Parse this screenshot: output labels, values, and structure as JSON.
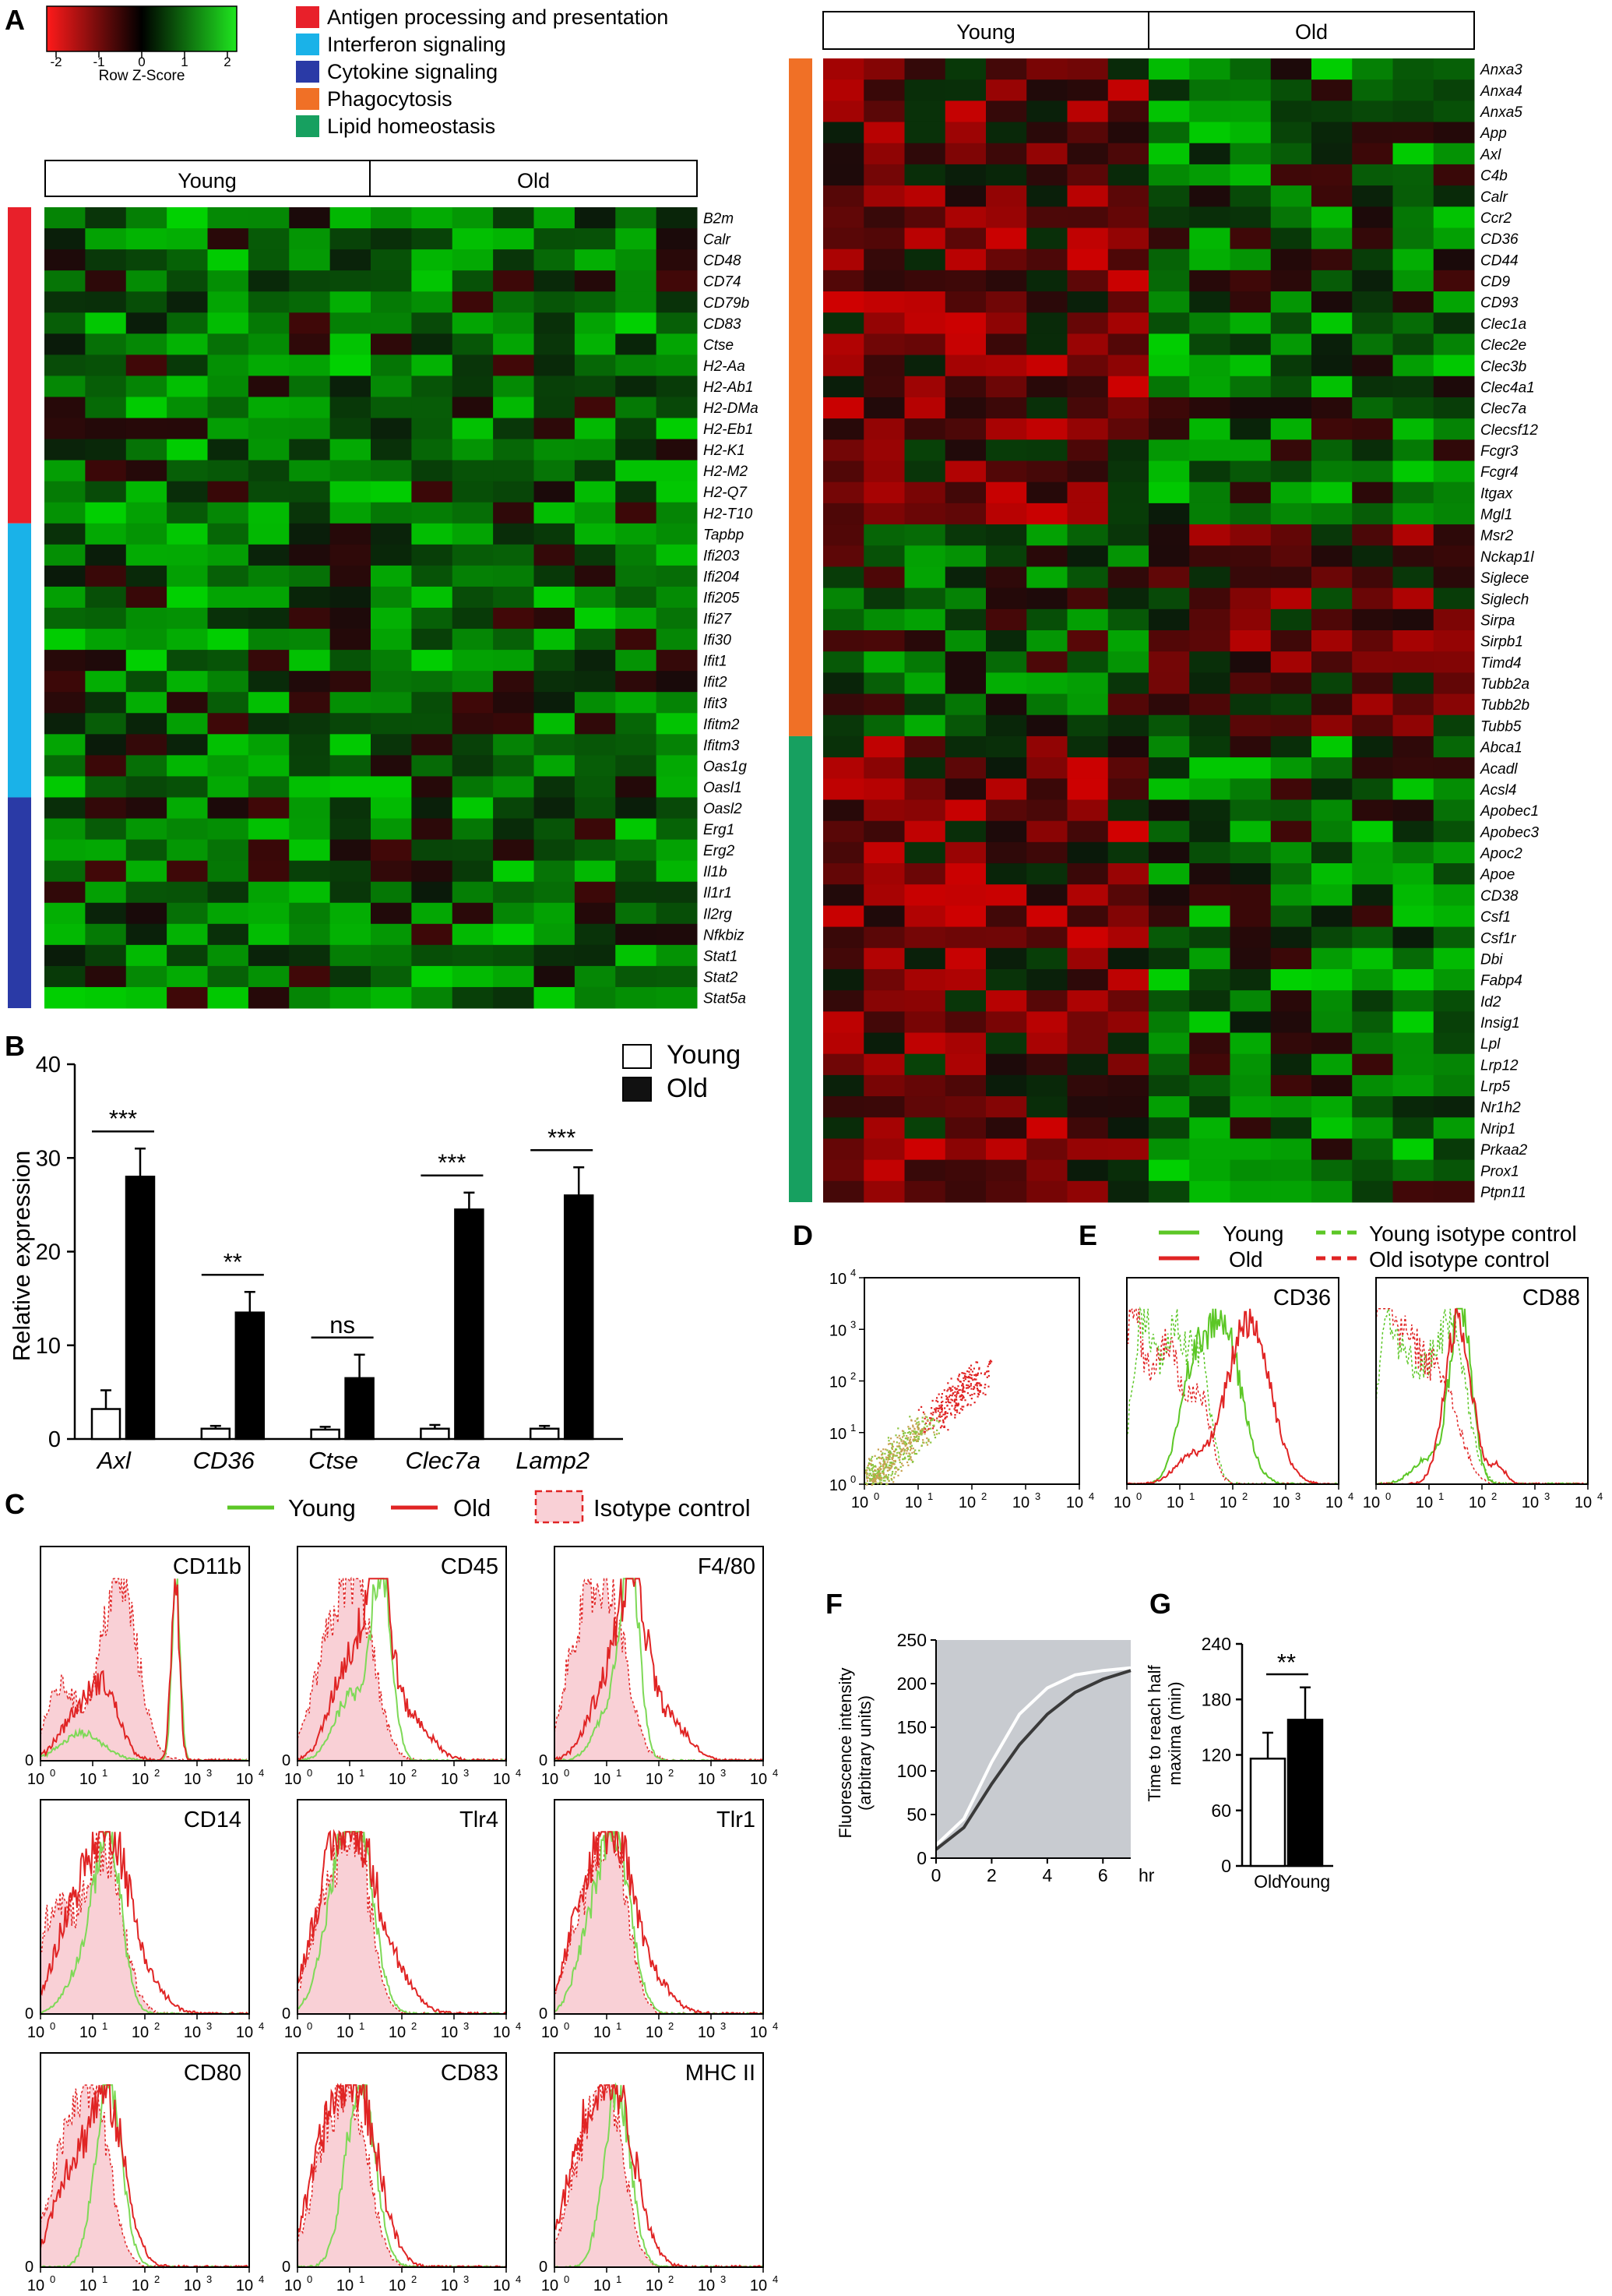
{
  "panels": {
    "A": "A",
    "B": "B",
    "C": "C",
    "D": "D",
    "E": "E",
    "F": "F",
    "G": "G"
  },
  "colors": {
    "red": "#ff1a1a",
    "green": "#1fe61f",
    "black": "#000000",
    "heat_red": "#e31a1c",
    "heat_green": "#16e016",
    "antigen": "#e8202a",
    "interferon": "#1ab2e8",
    "cytokine": "#2a3aa6",
    "phagocytosis": "#f07026",
    "lipid": "#17a060",
    "young_line": "#5cc726",
    "old_line": "#e02424",
    "isotype_fill": "#f9d0d6"
  },
  "colorkey": {
    "ticks": [
      "-2",
      "-1",
      "0",
      "1",
      "2"
    ],
    "label": "Row Z-Score"
  },
  "legend_A": [
    {
      "name": "Antigen processing and presentation",
      "color": "#e8202a"
    },
    {
      "name": "Interferon signaling",
      "color": "#1ab2e8"
    },
    {
      "name": "Cytokine signaling",
      "color": "#2a3aa6"
    },
    {
      "name": "Phagocytosis",
      "color": "#f07026"
    },
    {
      "name": "Lipid homeostasis",
      "color": "#17a060"
    }
  ],
  "groups": {
    "young": "Young",
    "old": "Old"
  },
  "heatmap_left": {
    "genes": [
      "B2m",
      "Calr",
      "CD48",
      "CD74",
      "CD79b",
      "CD83",
      "Ctse",
      "H2-Aa",
      "H2-Ab1",
      "H2-DMa",
      "H2-Eb1",
      "H2-K1",
      "H2-M2",
      "H2-Q7",
      "H2-T10",
      "Tapbp",
      "Ifi203",
      "Ifi204",
      "Ifi205",
      "Ifi27",
      "Ifi30",
      "Ifit1",
      "Ifit2",
      "Ifit3",
      "Ifitm2",
      "Ifitm3",
      "Oas1g",
      "Oasl1",
      "Oasl2",
      "Erg1",
      "Erg2",
      "Il1b",
      "Il1r1",
      "Il2rg",
      "Nfkbiz",
      "Stat1",
      "Stat2",
      "Stat5a"
    ],
    "sidebar": [
      {
        "category": "antigen",
        "rows": 15
      },
      {
        "category": "interferon",
        "rows": 13
      },
      {
        "category": "cytokine",
        "rows": 10
      }
    ]
  },
  "heatmap_right": {
    "genes": [
      "Anxa3",
      "Anxa4",
      "Anxa5",
      "App",
      "Axl",
      "C4b",
      "Calr",
      "Ccr2",
      "CD36",
      "CD44",
      "CD9",
      "CD93",
      "Clec1a",
      "Clec2e",
      "Clec3b",
      "Clec4a1",
      "Clec7a",
      "Clecsf12",
      "Fcgr3",
      "Fcgr4",
      "Itgax",
      "Mgl1",
      "Msr2",
      "Nckap1l",
      "Siglece",
      "Siglech",
      "Sirpa",
      "Sirpb1",
      "Timd4",
      "Tubb2a",
      "Tubb2b",
      "Tubb5",
      "Abca1",
      "Acadl",
      "Acsl4",
      "Apobec1",
      "Apobec3",
      "Apoc2",
      "Apoe",
      "CD38",
      "Csf1",
      "Csf1r",
      "Dbi",
      "Fabp4",
      "Id2",
      "Insig1",
      "Lpl",
      "Lrp12",
      "Lrp5",
      "Nr1h2",
      "Nrip1",
      "Prkaa2",
      "Prox1",
      "Ptpn11"
    ],
    "sidebar": [
      {
        "category": "phagocytosis",
        "rows": 32
      },
      {
        "category": "lipid",
        "rows": 22
      }
    ]
  },
  "panel_B": {
    "legend": [
      "Young",
      "Old"
    ],
    "ylabel": "Relative expression",
    "yticks": [
      "0",
      "10",
      "20",
      "30",
      "40"
    ],
    "sig": [
      "***",
      "**",
      "ns",
      "***",
      "***"
    ],
    "chart_data": {
      "type": "bar",
      "categories": [
        "Axl",
        "CD36",
        "Ctse",
        "Clec7a",
        "Lamp2"
      ],
      "series": [
        {
          "name": "Young",
          "values": [
            3.2,
            1.1,
            1.0,
            1.1,
            1.1
          ],
          "err": [
            2.0,
            0.3,
            0.3,
            0.4,
            0.3
          ]
        },
        {
          "name": "Old",
          "values": [
            28,
            13.5,
            6.5,
            24.5,
            26
          ],
          "err": [
            3.0,
            2.2,
            2.5,
            1.8,
            3.0
          ]
        }
      ],
      "ylim": [
        0,
        40
      ]
    }
  },
  "panel_C": {
    "legend": {
      "young": "Young",
      "old": "Old",
      "iso": "Isotype control"
    },
    "markers": [
      "CD11b",
      "CD45",
      "F4/80",
      "CD14",
      "Tlr4",
      "Tlr1",
      "CD80",
      "CD83",
      "MHC II"
    ],
    "xticks": [
      "10",
      "10",
      "10",
      "10",
      "10"
    ],
    "xexp": [
      "0",
      "1",
      "2",
      "3",
      "4"
    ],
    "zero": "0"
  },
  "panel_D": {
    "yticks": [
      "10",
      "10",
      "10",
      "10",
      "10"
    ],
    "yexp": [
      "4",
      "3",
      "2",
      "1",
      "0"
    ],
    "xticks": [
      "10",
      "10",
      "10",
      "10",
      "10"
    ],
    "xexp": [
      "0",
      "1",
      "2",
      "3",
      "4"
    ]
  },
  "panel_E": {
    "legend": {
      "young": "Young",
      "old": "Old",
      "young_iso": "Young isotype control",
      "old_iso": "Old isotype control"
    },
    "markers": [
      "CD36",
      "CD88"
    ],
    "xticks": [
      "10",
      "10",
      "10",
      "10",
      "10"
    ],
    "xexp": [
      "0",
      "1",
      "2",
      "3",
      "4"
    ]
  },
  "panel_F": {
    "ylabel1": "Fluorescence intensity",
    "ylabel2": "(arbitrary units)",
    "yticks": [
      "0",
      "50",
      "100",
      "150",
      "200",
      "250"
    ],
    "xticks": [
      "0",
      "2",
      "4",
      "6"
    ],
    "xunit": "hr",
    "chart_data": {
      "type": "line",
      "x": [
        0,
        1,
        2,
        3,
        4,
        5,
        6,
        7
      ],
      "series": [
        {
          "values": [
            15,
            45,
            110,
            165,
            195,
            210,
            215,
            218
          ]
        },
        {
          "values": [
            10,
            35,
            85,
            130,
            165,
            190,
            205,
            215
          ]
        }
      ],
      "xlim": [
        0,
        7
      ],
      "ylim": [
        0,
        250
      ]
    }
  },
  "panel_G": {
    "ylabel1": "Time to reach half",
    "ylabel2": "maxima (min)",
    "yticks": [
      "0",
      "60",
      "120",
      "180",
      "240"
    ],
    "sig": "**",
    "chart_data": {
      "type": "bar",
      "categories": [
        "Old",
        "Young"
      ],
      "values": [
        116,
        158
      ],
      "err": [
        28,
        35
      ],
      "ylim": [
        0,
        240
      ]
    }
  }
}
